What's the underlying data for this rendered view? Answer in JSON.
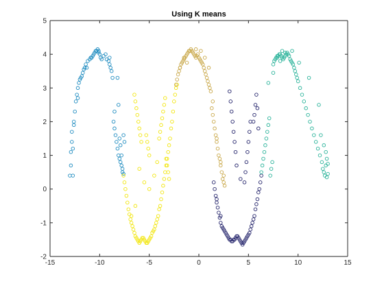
{
  "chart_data": {
    "type": "scatter",
    "title": "Using K means",
    "xlabel": "",
    "ylabel": "",
    "xlim": [
      -15,
      15
    ],
    "ylim": [
      -2,
      5
    ],
    "x_ticks": [
      -15,
      -10,
      -5,
      0,
      5,
      10,
      15
    ],
    "y_ticks": [
      -2,
      -1,
      0,
      1,
      2,
      3,
      4,
      5
    ],
    "x_tick_labels": [
      "-15",
      "-10",
      "-5",
      "0",
      "5",
      "10",
      "15"
    ],
    "y_tick_labels": [
      "-2",
      "-1",
      "0",
      "1",
      "2",
      "3",
      "4",
      "5"
    ],
    "grid": false,
    "legend": "none",
    "series": [
      {
        "color": "#1f8cc0",
        "x": [
          -13.0,
          -12.9,
          -12.9,
          -12.8,
          -12.8,
          -12.6,
          -12.5,
          -12.4,
          -12.3,
          -12.2,
          -12.1,
          -12.0,
          -11.9,
          -11.8,
          -11.7,
          -11.6,
          -11.5,
          -11.4,
          -11.2,
          -11.0,
          -10.9,
          -10.7,
          -10.6,
          -10.5,
          -10.4,
          -10.3,
          -10.2,
          -10.1,
          -10.0,
          -9.9,
          -9.8,
          -9.6,
          -9.4,
          -9.3,
          -9.1,
          -9.0,
          -8.9,
          -8.8,
          -8.7,
          -8.6,
          -8.5,
          -8.4,
          -8.3,
          -8.2,
          -8.1,
          -8.0,
          -7.9,
          -7.8,
          -7.7,
          -7.6,
          -7.6,
          -7.5,
          -12.7,
          -12.7,
          -12.2,
          -11.3,
          -10.1,
          -9.0,
          -8.5,
          -8.0,
          -7.9,
          -7.8,
          -7.7,
          -8.1,
          -8.2,
          -12.6,
          -10.8
        ],
        "y": [
          0.4,
          0.7,
          1.1,
          1.4,
          1.7,
          2.0,
          2.3,
          2.6,
          2.8,
          3.0,
          3.15,
          3.25,
          3.3,
          3.35,
          3.45,
          3.55,
          3.6,
          3.7,
          3.8,
          3.85,
          3.9,
          3.95,
          4.0,
          4.05,
          4.1,
          4.1,
          4.15,
          4.1,
          4.0,
          3.9,
          3.85,
          3.95,
          4.0,
          3.85,
          3.8,
          3.7,
          3.6,
          3.5,
          3.3,
          2.0,
          1.8,
          1.6,
          1.4,
          1.2,
          1.0,
          0.9,
          0.8,
          0.7,
          0.5,
          0.45,
          1.6,
          1.4,
          0.4,
          1.2,
          2.7,
          3.6,
          4.05,
          3.9,
          2.3,
          1.5,
          1.3,
          1.0,
          0.6,
          2.5,
          3.3,
          1.9,
          3.9
        ]
      },
      {
        "color": "#f2e60f",
        "x": [
          -7.6,
          -7.5,
          -7.4,
          -7.3,
          -7.2,
          -7.1,
          -7.0,
          -6.9,
          -6.8,
          -6.7,
          -6.6,
          -6.5,
          -6.4,
          -6.3,
          -6.2,
          -6.1,
          -6.0,
          -5.9,
          -5.8,
          -5.7,
          -5.6,
          -5.5,
          -5.4,
          -5.3,
          -5.2,
          -5.1,
          -5.0,
          -4.9,
          -4.8,
          -4.7,
          -4.6,
          -4.5,
          -4.4,
          -4.3,
          -4.2,
          -4.1,
          -4.0,
          -3.9,
          -3.8,
          -3.7,
          -3.6,
          -3.5,
          -3.4,
          -3.3,
          -3.2,
          -3.1,
          -3.0,
          -2.9,
          -2.8,
          -2.7,
          -2.6,
          -2.5,
          -2.4,
          -2.3,
          -2.2,
          -6.5,
          -6.4,
          -6.3,
          -6.2,
          -6.1,
          -6.0,
          -5.9,
          -5.8,
          -5.3,
          -5.2,
          -5.1,
          -5.0,
          -4.0,
          -3.9,
          -3.8,
          -3.7,
          -3.6,
          -3.5,
          -3.4,
          -3.3,
          -3.2,
          -3.1,
          -3.0,
          -6.0,
          -5.5,
          -5.0,
          -4.5,
          -4.2,
          -6.4,
          -6.8
        ],
        "y": [
          0.4,
          0.2,
          0.0,
          -0.2,
          -0.4,
          -0.6,
          -0.75,
          -0.9,
          -1.0,
          -1.1,
          -1.2,
          -1.3,
          -1.4,
          -1.45,
          -1.5,
          -1.55,
          -1.6,
          -1.55,
          -1.5,
          -1.45,
          -1.45,
          -1.5,
          -1.55,
          -1.6,
          -1.6,
          -1.55,
          -1.5,
          -1.45,
          -1.4,
          -1.3,
          -1.25,
          -1.2,
          -1.1,
          -1.0,
          -0.9,
          -0.8,
          -0.6,
          -0.5,
          -0.3,
          -0.1,
          0.1,
          0.3,
          0.5,
          0.7,
          0.9,
          1.1,
          1.3,
          1.5,
          1.8,
          2.0,
          2.3,
          2.6,
          2.8,
          3.0,
          3.1,
          2.8,
          2.6,
          2.4,
          2.2,
          2.0,
          1.8,
          1.6,
          1.4,
          1.6,
          1.4,
          1.2,
          1.0,
          1.5,
          1.7,
          1.9,
          2.1,
          2.3,
          2.5,
          2.7,
          0.9,
          0.7,
          0.5,
          0.3,
          0.6,
          0.2,
          0.0,
          0.4,
          0.8,
          -0.5,
          -0.8
        ]
      },
      {
        "color": "#c9a84a",
        "x": [
          -2.3,
          -2.2,
          -2.1,
          -2.0,
          -1.9,
          -1.8,
          -1.7,
          -1.6,
          -1.5,
          -1.4,
          -1.3,
          -1.2,
          -1.1,
          -1.0,
          -0.9,
          -0.8,
          -0.7,
          -0.6,
          -0.5,
          -0.4,
          -0.3,
          -0.2,
          -0.1,
          0.0,
          0.1,
          0.2,
          0.3,
          0.4,
          0.5,
          0.6,
          0.7,
          0.8,
          0.9,
          1.0,
          1.1,
          1.2,
          1.3,
          1.4,
          1.5,
          1.6,
          1.7,
          1.8,
          1.9,
          2.0,
          2.1,
          2.2,
          2.3,
          2.4,
          2.5,
          -1.9,
          -1.5,
          -1.2,
          0.6,
          1.0,
          1.4,
          1.8,
          2.2,
          0.2,
          -0.3,
          2.6,
          2.5
        ],
        "y": [
          3.1,
          3.25,
          3.4,
          3.5,
          3.6,
          3.7,
          3.75,
          3.8,
          3.85,
          3.9,
          3.95,
          4.0,
          4.05,
          4.1,
          4.1,
          4.15,
          4.1,
          4.05,
          4.0,
          3.95,
          3.9,
          3.95,
          4.0,
          3.9,
          3.85,
          3.8,
          3.75,
          3.7,
          3.6,
          3.5,
          3.4,
          3.3,
          3.2,
          3.1,
          3.0,
          2.9,
          2.4,
          2.2,
          2.0,
          1.8,
          1.6,
          1.4,
          1.2,
          1.0,
          0.9,
          0.7,
          0.5,
          0.3,
          0.2,
          3.6,
          3.9,
          3.75,
          3.9,
          3.6,
          2.6,
          1.5,
          0.8,
          4.1,
          4.15,
          0.1,
          0.4
        ]
      },
      {
        "color": "#24246b",
        "x": [
          1.5,
          1.6,
          1.7,
          1.8,
          1.9,
          2.0,
          2.1,
          2.2,
          2.3,
          2.4,
          2.5,
          2.6,
          2.7,
          2.8,
          2.9,
          3.0,
          3.1,
          3.2,
          3.3,
          3.4,
          3.5,
          3.6,
          3.7,
          3.8,
          3.9,
          4.0,
          4.1,
          4.2,
          4.3,
          4.4,
          4.5,
          4.6,
          4.7,
          4.8,
          4.9,
          5.0,
          5.1,
          5.2,
          5.3,
          5.4,
          5.5,
          5.6,
          5.7,
          5.8,
          5.9,
          6.0,
          6.1,
          6.2,
          6.3,
          3.1,
          3.2,
          3.3,
          3.4,
          3.5,
          3.6,
          3.7,
          4.6,
          4.7,
          4.8,
          4.9,
          5.0,
          5.1,
          5.2,
          5.5,
          5.6,
          5.7,
          5.8,
          5.9,
          6.0,
          1.8,
          2.2,
          4.2,
          3.8
        ],
        "y": [
          0.2,
          0.0,
          -0.2,
          -0.4,
          -0.55,
          -0.7,
          -0.85,
          -1.0,
          -1.1,
          -1.15,
          -1.2,
          -1.25,
          -1.3,
          -1.35,
          -1.4,
          -1.45,
          -1.5,
          -1.5,
          -1.55,
          -1.55,
          -1.5,
          -1.5,
          -1.45,
          -1.4,
          -1.4,
          -1.45,
          -1.5,
          -1.55,
          -1.6,
          -1.65,
          -1.6,
          -1.55,
          -1.5,
          -1.45,
          -1.4,
          -1.35,
          -1.3,
          -1.2,
          -1.1,
          -1.0,
          -0.9,
          -0.8,
          -0.6,
          -0.45,
          -0.3,
          -0.1,
          0.0,
          0.2,
          0.4,
          2.9,
          2.6,
          2.3,
          2.0,
          1.7,
          1.4,
          1.1,
          0.2,
          0.5,
          0.8,
          1.1,
          1.4,
          1.7,
          2.0,
          2.0,
          2.2,
          2.5,
          2.8,
          2.4,
          1.8,
          -0.3,
          -0.8,
          0.3,
          0.7
        ]
      },
      {
        "color": "#2ab39a",
        "x": [
          6.3,
          6.4,
          6.5,
          6.6,
          6.7,
          6.8,
          6.9,
          7.0,
          7.1,
          7.2,
          7.3,
          7.4,
          7.5,
          7.6,
          7.7,
          7.8,
          7.9,
          8.0,
          8.1,
          8.2,
          8.3,
          8.4,
          8.5,
          8.6,
          8.7,
          8.8,
          8.9,
          9.0,
          9.1,
          9.2,
          9.3,
          9.4,
          9.5,
          9.6,
          9.7,
          9.8,
          9.9,
          10.0,
          10.2,
          10.4,
          10.6,
          10.8,
          11.0,
          11.2,
          11.4,
          11.6,
          11.8,
          12.0,
          12.2,
          12.4,
          12.5,
          12.6,
          12.7,
          12.8,
          12.9,
          13.0,
          13.0,
          12.9,
          12.8,
          7.0,
          7.5,
          8.2,
          8.7,
          9.4,
          10.1,
          11.1,
          12.1,
          12.3,
          12.6,
          8.4,
          7.9
        ],
        "y": [
          0.5,
          0.7,
          0.9,
          1.1,
          1.3,
          1.5,
          1.7,
          1.9,
          2.1,
          0.4,
          0.6,
          0.8,
          3.7,
          3.8,
          3.85,
          3.9,
          3.95,
          3.95,
          4.0,
          4.0,
          3.95,
          3.9,
          3.85,
          3.9,
          3.95,
          4.0,
          4.05,
          4.0,
          3.95,
          3.85,
          3.8,
          3.75,
          3.7,
          3.6,
          3.5,
          3.4,
          3.3,
          3.2,
          3.0,
          2.8,
          2.6,
          2.4,
          2.2,
          2.0,
          1.8,
          1.6,
          1.4,
          1.2,
          1.0,
          0.8,
          0.6,
          0.5,
          0.4,
          0.7,
          0.9,
          0.75,
          0.45,
          0.35,
          1.1,
          3.15,
          3.45,
          3.8,
          4.05,
          4.1,
          3.75,
          3.3,
          2.5,
          1.6,
          1.3,
          4.1,
          3.9
        ]
      }
    ]
  }
}
